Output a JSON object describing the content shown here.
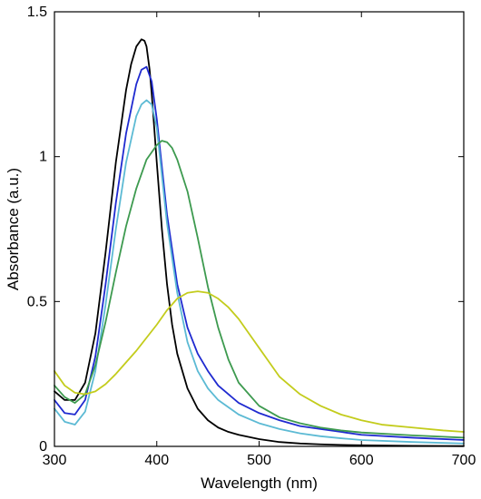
{
  "chart_data": {
    "type": "line",
    "title": "",
    "xlabel": "Wavelength (nm)",
    "ylabel": "Absorbance (a.u.)",
    "xlim": [
      300,
      700
    ],
    "ylim": [
      0,
      1.5
    ],
    "xticks": [
      300,
      400,
      500,
      600,
      700
    ],
    "xtick_labels": [
      "300",
      "400",
      "500",
      "600",
      "700"
    ],
    "yticks": [
      0,
      0.5,
      1,
      1.5
    ],
    "ytick_labels": [
      "0",
      "0.5",
      "1",
      "1.5"
    ],
    "grid": false,
    "box": true,
    "series": [
      {
        "color": "#000000",
        "x": [
          300,
          310,
          320,
          330,
          340,
          350,
          360,
          370,
          375,
          380,
          385,
          388,
          390,
          393,
          395,
          400,
          405,
          410,
          415,
          420,
          430,
          440,
          450,
          460,
          470,
          480,
          500,
          520,
          540,
          560,
          580,
          600,
          650,
          700
        ],
        "y": [
          0.19,
          0.16,
          0.16,
          0.22,
          0.39,
          0.67,
          0.98,
          1.23,
          1.32,
          1.38,
          1.405,
          1.4,
          1.38,
          1.3,
          1.22,
          0.98,
          0.75,
          0.56,
          0.42,
          0.32,
          0.2,
          0.13,
          0.09,
          0.065,
          0.05,
          0.04,
          0.025,
          0.015,
          0.01,
          0.007,
          0.005,
          0.004,
          0.002,
          0.001
        ]
      },
      {
        "color": "#1f2ad0",
        "x": [
          300,
          310,
          320,
          330,
          340,
          350,
          360,
          370,
          380,
          385,
          390,
          395,
          400,
          410,
          420,
          430,
          440,
          450,
          460,
          480,
          500,
          520,
          540,
          560,
          580,
          600,
          650,
          700
        ],
        "y": [
          0.16,
          0.115,
          0.11,
          0.16,
          0.31,
          0.56,
          0.84,
          1.08,
          1.25,
          1.3,
          1.31,
          1.26,
          1.13,
          0.8,
          0.56,
          0.41,
          0.32,
          0.26,
          0.21,
          0.15,
          0.115,
          0.09,
          0.07,
          0.06,
          0.05,
          0.04,
          0.03,
          0.022
        ]
      },
      {
        "color": "#5cbad4",
        "x": [
          300,
          310,
          320,
          330,
          340,
          350,
          360,
          370,
          380,
          385,
          390,
          395,
          400,
          410,
          420,
          430,
          440,
          450,
          460,
          480,
          500,
          520,
          540,
          560,
          580,
          600,
          650,
          700
        ],
        "y": [
          0.13,
          0.085,
          0.075,
          0.12,
          0.26,
          0.49,
          0.75,
          0.98,
          1.14,
          1.18,
          1.195,
          1.18,
          1.1,
          0.77,
          0.53,
          0.36,
          0.26,
          0.2,
          0.16,
          0.11,
          0.08,
          0.06,
          0.045,
          0.035,
          0.028,
          0.022,
          0.015,
          0.01
        ]
      },
      {
        "color": "#3d9a4f",
        "x": [
          300,
          310,
          320,
          330,
          340,
          350,
          360,
          370,
          380,
          390,
          400,
          405,
          410,
          415,
          420,
          430,
          440,
          450,
          460,
          470,
          480,
          500,
          520,
          540,
          560,
          580,
          600,
          650,
          700
        ],
        "y": [
          0.21,
          0.17,
          0.15,
          0.18,
          0.28,
          0.43,
          0.6,
          0.76,
          0.89,
          0.99,
          1.04,
          1.055,
          1.05,
          1.03,
          0.99,
          0.88,
          0.72,
          0.55,
          0.41,
          0.3,
          0.22,
          0.14,
          0.1,
          0.08,
          0.065,
          0.055,
          0.048,
          0.038,
          0.03
        ]
      },
      {
        "color": "#c3cc1c",
        "x": [
          300,
          310,
          320,
          330,
          340,
          350,
          360,
          370,
          380,
          390,
          400,
          410,
          420,
          430,
          440,
          450,
          460,
          470,
          480,
          490,
          500,
          510,
          520,
          540,
          560,
          580,
          600,
          620,
          650,
          680,
          700
        ],
        "y": [
          0.26,
          0.21,
          0.185,
          0.18,
          0.19,
          0.215,
          0.25,
          0.29,
          0.33,
          0.375,
          0.42,
          0.47,
          0.51,
          0.53,
          0.535,
          0.53,
          0.51,
          0.48,
          0.44,
          0.39,
          0.34,
          0.29,
          0.24,
          0.18,
          0.14,
          0.11,
          0.09,
          0.075,
          0.065,
          0.055,
          0.05
        ]
      }
    ]
  }
}
